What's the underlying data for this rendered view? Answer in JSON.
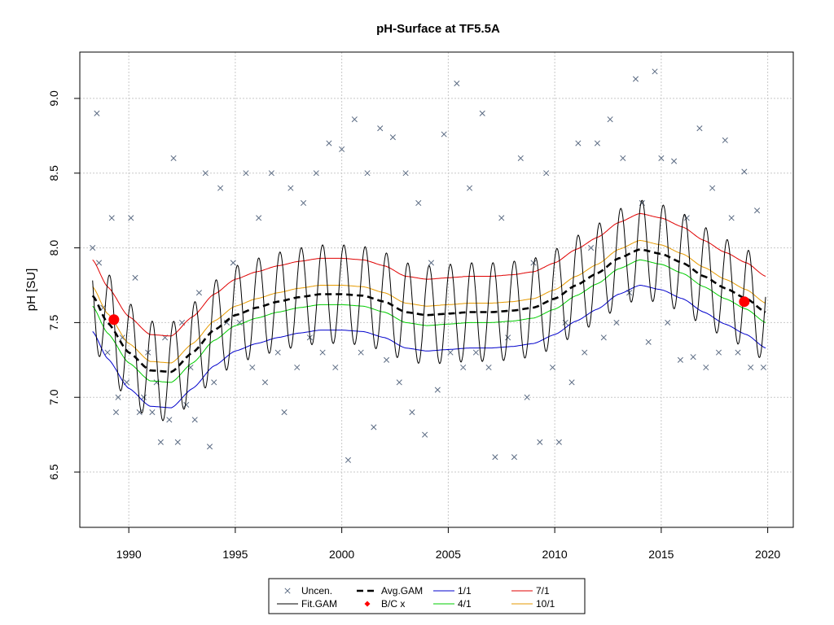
{
  "chart_data": {
    "type": "line",
    "title": "pH-Surface at TF5.5A",
    "xlabel": "",
    "ylabel": "pH [SU]",
    "xlim": [
      1987.7,
      2021.2
    ],
    "ylim": [
      6.13,
      9.31
    ],
    "x_ticks": [
      1990,
      1995,
      2000,
      2005,
      2010,
      2015,
      2020
    ],
    "y_ticks": [
      6.5,
      7.0,
      7.5,
      8.0,
      8.5,
      9.0
    ],
    "grid": true,
    "legend": {
      "placement": "bottom",
      "entries": [
        {
          "label": "Uncen.",
          "kind": "cross",
          "color": "#5a6a82"
        },
        {
          "label": "Avg.GAM",
          "kind": "dash",
          "color": "#000000"
        },
        {
          "label": "1/1",
          "kind": "line",
          "color": "#0000cc"
        },
        {
          "label": "7/1",
          "kind": "line",
          "color": "#e00000"
        },
        {
          "label": "Fit.GAM",
          "kind": "line",
          "color": "#000000"
        },
        {
          "label": "B/C x",
          "kind": "dot",
          "color": "#ff0000"
        },
        {
          "label": "4/1",
          "kind": "line",
          "color": "#00cc00"
        },
        {
          "label": "10/1",
          "kind": "line",
          "color": "#e69a00"
        }
      ]
    },
    "avg_gam": {
      "name": "Avg.GAM",
      "x": [
        1988.3,
        1989,
        1990,
        1991,
        1992,
        1993,
        1994,
        1995,
        1996,
        1997,
        1998,
        1999,
        2000,
        2001,
        2002,
        2003,
        2004,
        2005,
        2006,
        2007,
        2008,
        2009,
        2010,
        2011,
        2012,
        2013,
        2014,
        2015,
        2016,
        2017,
        2018,
        2019,
        2019.9
      ],
      "y": [
        7.68,
        7.5,
        7.3,
        7.18,
        7.17,
        7.3,
        7.45,
        7.55,
        7.6,
        7.64,
        7.67,
        7.69,
        7.69,
        7.68,
        7.64,
        7.57,
        7.55,
        7.56,
        7.57,
        7.57,
        7.58,
        7.6,
        7.66,
        7.75,
        7.83,
        7.93,
        7.99,
        7.96,
        7.9,
        7.81,
        7.73,
        7.66,
        7.57
      ]
    },
    "seasonal_offsets": [
      {
        "name": "1/1",
        "color": "#0000cc",
        "offset": -0.24
      },
      {
        "name": "4/1",
        "color": "#00cc00",
        "offset": -0.07
      },
      {
        "name": "7/1",
        "color": "#e00000",
        "offset": 0.24
      },
      {
        "name": "10/1",
        "color": "#e69a00",
        "offset": 0.06
      }
    ],
    "fit_gam": {
      "name": "Fit.GAM",
      "amplitude": 0.33,
      "cycles_per_year": 1
    },
    "bc_points": {
      "name": "B/C x",
      "x": [
        1989.3,
        2018.9
      ],
      "y": [
        7.52,
        7.64
      ]
    },
    "uncensored_points": {
      "name": "Uncen.",
      "x": [
        1988.3,
        1988.5,
        1988.6,
        1988.8,
        1989.0,
        1989.2,
        1989.4,
        1989.5,
        1989.7,
        1989.9,
        1990.1,
        1990.3,
        1990.5,
        1990.7,
        1990.9,
        1991.1,
        1991.3,
        1991.5,
        1991.7,
        1991.9,
        1992.1,
        1992.3,
        1992.5,
        1992.7,
        1992.9,
        1993.1,
        1993.3,
        1993.6,
        1993.8,
        1994.0,
        1994.3,
        1994.6,
        1994.9,
        1995.2,
        1995.5,
        1995.8,
        1996.1,
        1996.4,
        1996.7,
        1997.0,
        1997.3,
        1997.6,
        1997.9,
        1998.2,
        1998.5,
        1998.8,
        1999.1,
        1999.4,
        1999.7,
        2000.0,
        2000.3,
        2000.6,
        2000.9,
        2001.2,
        2001.5,
        2001.8,
        2002.1,
        2002.4,
        2002.7,
        2003.0,
        2003.3,
        2003.6,
        2003.9,
        2004.2,
        2004.5,
        2004.8,
        2005.1,
        2005.4,
        2005.7,
        2006.0,
        2006.3,
        2006.6,
        2006.9,
        2007.2,
        2007.5,
        2007.8,
        2008.1,
        2008.4,
        2008.7,
        2009.0,
        2009.3,
        2009.6,
        2009.9,
        2010.2,
        2010.5,
        2010.8,
        2011.1,
        2011.4,
        2011.7,
        2012.0,
        2012.3,
        2012.6,
        2012.9,
        2013.2,
        2013.5,
        2013.8,
        2014.1,
        2014.4,
        2014.7,
        2015.0,
        2015.3,
        2015.6,
        2015.9,
        2016.2,
        2016.5,
        2016.8,
        2017.1,
        2017.4,
        2017.7,
        2018.0,
        2018.3,
        2018.6,
        2018.9,
        2019.2,
        2019.5,
        2019.8
      ],
      "y": [
        8.0,
        8.9,
        7.9,
        7.6,
        7.3,
        8.2,
        6.9,
        7.0,
        7.4,
        7.1,
        8.2,
        7.8,
        6.9,
        7.0,
        7.3,
        6.9,
        7.1,
        6.7,
        7.4,
        6.85,
        8.6,
        6.7,
        7.5,
        6.95,
        7.2,
        6.85,
        7.7,
        8.5,
        6.67,
        7.1,
        8.4,
        7.5,
        7.9,
        7.5,
        8.5,
        7.2,
        8.2,
        7.1,
        8.5,
        7.3,
        6.9,
        8.4,
        7.2,
        8.3,
        7.4,
        8.5,
        7.3,
        8.7,
        7.2,
        8.66,
        6.58,
        8.86,
        7.3,
        8.5,
        6.8,
        8.8,
        7.25,
        8.74,
        7.1,
        8.5,
        6.9,
        8.3,
        6.75,
        7.9,
        7.05,
        8.76,
        7.3,
        9.1,
        7.2,
        8.4,
        7.3,
        8.9,
        7.2,
        6.6,
        8.2,
        7.4,
        6.6,
        8.6,
        7.0,
        7.9,
        6.7,
        8.5,
        7.2,
        6.7,
        7.5,
        7.1,
        8.7,
        7.3,
        8.0,
        8.7,
        7.4,
        8.86,
        7.5,
        8.6,
        7.7,
        9.13,
        8.3,
        7.37,
        9.18,
        8.6,
        7.5,
        8.58,
        7.25,
        8.2,
        7.27,
        8.8,
        7.2,
        8.4,
        7.3,
        8.72,
        8.2,
        7.3,
        8.51,
        7.2,
        8.25,
        7.2
      ]
    }
  }
}
